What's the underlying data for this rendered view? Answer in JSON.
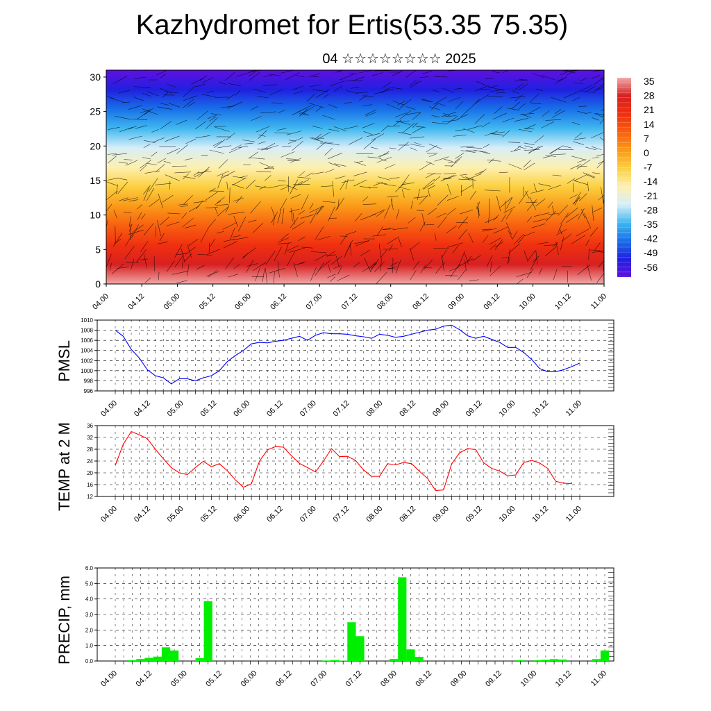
{
  "title": "Kazhydromet for Ertis(53.35 75.35)",
  "subtitle": "04 ☆☆☆☆☆☆☆☆ 2025",
  "chart_data": [
    {
      "type": "heatmap",
      "title": "",
      "x_ticks": [
        "04.00",
        "04.12",
        "05.00",
        "05.12",
        "06.00",
        "06.12",
        "07.00",
        "07.12",
        "08.00",
        "08.12",
        "09.00",
        "09.12",
        "10.00",
        "10.12",
        "11.00"
      ],
      "y_ticks": [
        "0",
        "5",
        "10",
        "15",
        "20",
        "25",
        "30"
      ],
      "ylim": [
        0,
        31
      ],
      "colorbar_labels": [
        "35",
        "28",
        "21",
        "14",
        "7",
        "0",
        "-7",
        "-14",
        "-21",
        "-28",
        "-35",
        "-42",
        "-49",
        "-56"
      ],
      "colors": [
        "#f0a8a8",
        "#d82020",
        "#f03010",
        "#f86010",
        "#fa9a18",
        "#fcd040",
        "#fdf0b0",
        "#d8eef8",
        "#40b8f0",
        "#1870e8",
        "#2020e0",
        "#6010e0"
      ],
      "wind_overlay": true
    },
    {
      "type": "line",
      "ylabel": "PMSL",
      "x_ticks": [
        "04.00",
        "04.12",
        "05.00",
        "05.12",
        "06.00",
        "06.12",
        "07.00",
        "07.12",
        "08.00",
        "08.12",
        "09.00",
        "09.12",
        "10.00",
        "10.12",
        "11.00"
      ],
      "y_ticks": [
        "996",
        "998",
        "1000",
        "1002",
        "1004",
        "1006",
        "1008",
        "1010"
      ],
      "ylim": [
        996,
        1010
      ],
      "color": "#0000ff",
      "values": [
        1008,
        1006.8,
        1004.2,
        1002.5,
        1000.2,
        999.0,
        998.6,
        997.4,
        998.4,
        998.4,
        998.0,
        998.6,
        999.0,
        1000.0,
        1001.8,
        1003.0,
        1004.0,
        1005.3,
        1005.6,
        1005.5,
        1005.8,
        1006.0,
        1006.4,
        1006.8,
        1006.0,
        1007.0,
        1007.5,
        1007.3,
        1007.3,
        1007.2,
        1006.9,
        1006.7,
        1006.4,
        1007.2,
        1007.0,
        1006.6,
        1006.8,
        1007.2,
        1007.6,
        1008.0,
        1008.2,
        1008.8,
        1009.0,
        1008.1,
        1006.9,
        1006.4,
        1006.8,
        1006.2,
        1005.6,
        1004.6,
        1004.6,
        1003.6,
        1002.2,
        1000.4,
        999.8,
        999.8,
        1000.2,
        1000.8,
        1001.5
      ]
    },
    {
      "type": "line",
      "ylabel": "TEMP at 2 M",
      "x_ticks": [
        "04.00",
        "04.12",
        "05.00",
        "05.12",
        "06.00",
        "06.12",
        "07.00",
        "07.12",
        "08.00",
        "08.12",
        "09.00",
        "09.12",
        "10.00",
        "10.12",
        "11.00"
      ],
      "y_ticks": [
        "12",
        "16",
        "20",
        "24",
        "28",
        "32",
        "36"
      ],
      "ylim": [
        12,
        36
      ],
      "color": "#ff0000",
      "values": [
        22.5,
        29.7,
        34.0,
        32.9,
        31.6,
        28.0,
        24.8,
        21.8,
        20.0,
        19.4,
        21.8,
        23.9,
        22.1,
        23.1,
        20.7,
        17.6,
        15.1,
        16.3,
        23.9,
        27.8,
        28.9,
        28.7,
        25.8,
        23.2,
        21.8,
        20.3,
        24.0,
        28.2,
        25.5,
        25.6,
        24.2,
        21.0,
        18.8,
        18.8,
        23.1,
        22.7,
        23.5,
        23.1,
        20.5,
        18.1,
        14.0,
        14.2,
        23.0,
        26.8,
        28.2,
        27.9,
        23.4,
        21.5,
        20.6,
        19.0,
        19.3,
        23.5,
        24.2,
        23.3,
        21.5,
        17.1,
        16.5,
        16.3
      ]
    },
    {
      "type": "bar",
      "ylabel": "PRECIP, mm",
      "x_ticks": [
        "04.00",
        "04.12",
        "05.00",
        "05.12",
        "06.00",
        "06.12",
        "07.00",
        "07.12",
        "08.00",
        "08.12",
        "09.00",
        "09.12",
        "10.00",
        "10.12",
        "11.00"
      ],
      "y_ticks": [
        "0.0",
        "1.0",
        "2.0",
        "3.0",
        "4.0",
        "5.0",
        "6.0"
      ],
      "ylim": [
        0,
        6
      ],
      "color": "#00ee00",
      "values": [
        0,
        0,
        0.05,
        0.13,
        0.2,
        0.28,
        0.88,
        0.68,
        0,
        0,
        0.18,
        3.85,
        0,
        0,
        0,
        0,
        0,
        0,
        0,
        0,
        0,
        0,
        0,
        0,
        0,
        0.03,
        0.06,
        0.02,
        2.5,
        1.6,
        0,
        0,
        0,
        0.13,
        5.4,
        0.75,
        0.27,
        0,
        0,
        0,
        0,
        0,
        0,
        0,
        0,
        0,
        0,
        0,
        0.05,
        0,
        0.05,
        0.08,
        0.12,
        0.1,
        0,
        0,
        0,
        0.12,
        0.68
      ]
    }
  ]
}
